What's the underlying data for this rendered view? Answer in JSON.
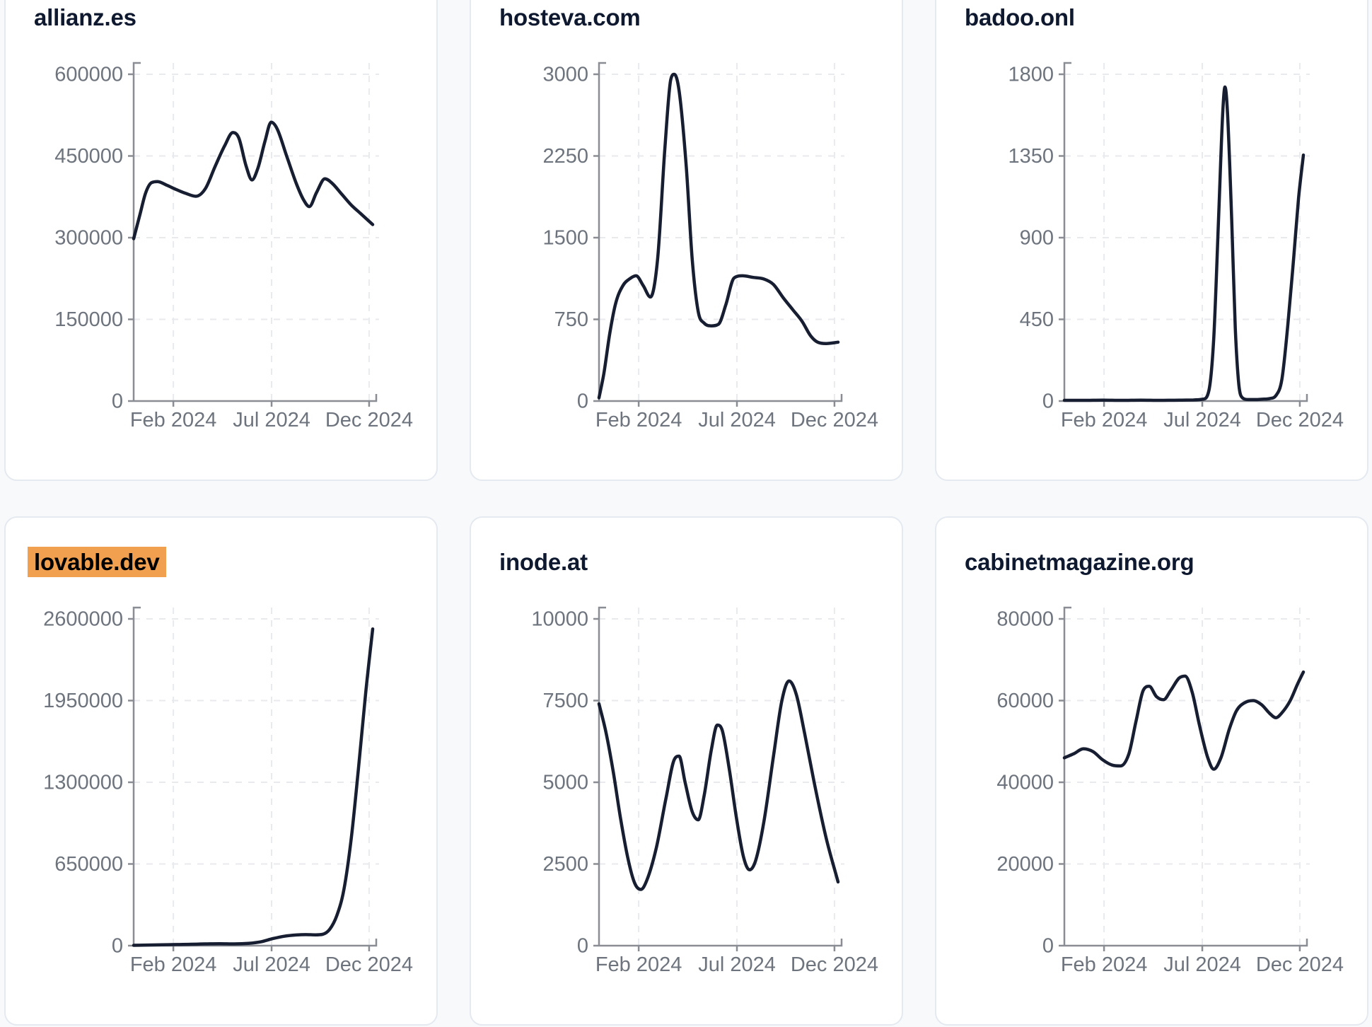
{
  "style": {
    "page_bg": "#f7f9fb",
    "card_bg": "#ffffff",
    "card_border": "#e5e9f0",
    "line_color": "#171e31",
    "title_color": "#0e1930",
    "tick_color": "#6e747d",
    "axis_color": "#8a8d93",
    "grid_color": "#e9eaee",
    "highlight_bg": "#f0a04e",
    "highlight_text": "#000000"
  },
  "chart_data": [
    {
      "type": "line",
      "title": "allianz.es",
      "highlighted": false,
      "xlabel": "",
      "ylabel": "",
      "x_ticks": [
        {
          "label": "Feb 2024",
          "pos": 0.166
        },
        {
          "label": "Jul 2024",
          "pos": 0.577
        },
        {
          "label": "Dec 2024",
          "pos": 0.985
        }
      ],
      "y_ticks": [
        0,
        150000,
        300000,
        450000,
        600000
      ],
      "y_max": 600000,
      "points": [
        [
          0.0,
          298000
        ],
        [
          0.025,
          340000
        ],
        [
          0.05,
          382000
        ],
        [
          0.075,
          401000
        ],
        [
          0.1,
          403000
        ],
        [
          0.14,
          396000
        ],
        [
          0.18,
          388000
        ],
        [
          0.22,
          381000
        ],
        [
          0.26,
          376000
        ],
        [
          0.3,
          390000
        ],
        [
          0.34,
          430000
        ],
        [
          0.38,
          468000
        ],
        [
          0.415,
          493000
        ],
        [
          0.44,
          483000
        ],
        [
          0.47,
          432000
        ],
        [
          0.495,
          406000
        ],
        [
          0.52,
          428000
        ],
        [
          0.55,
          478000
        ],
        [
          0.575,
          512000
        ],
        [
          0.6,
          500000
        ],
        [
          0.64,
          450000
        ],
        [
          0.68,
          400000
        ],
        [
          0.71,
          370000
        ],
        [
          0.735,
          357000
        ],
        [
          0.765,
          383000
        ],
        [
          0.8,
          408000
        ],
        [
          0.83,
          400000
        ],
        [
          0.87,
          380000
        ],
        [
          0.91,
          360000
        ],
        [
          0.95,
          344000
        ],
        [
          1.0,
          324000
        ]
      ]
    },
    {
      "type": "line",
      "title": "hosteva.com",
      "highlighted": false,
      "xlabel": "",
      "ylabel": "",
      "x_ticks": [
        {
          "label": "Feb 2024",
          "pos": 0.166
        },
        {
          "label": "Jul 2024",
          "pos": 0.577
        },
        {
          "label": "Dec 2024",
          "pos": 0.985
        }
      ],
      "y_ticks": [
        0,
        750,
        1500,
        2250,
        3000
      ],
      "y_max": 3000,
      "points": [
        [
          0.0,
          30
        ],
        [
          0.02,
          250
        ],
        [
          0.045,
          620
        ],
        [
          0.07,
          900
        ],
        [
          0.1,
          1060
        ],
        [
          0.13,
          1125
        ],
        [
          0.155,
          1150
        ],
        [
          0.185,
          1060
        ],
        [
          0.215,
          955
        ],
        [
          0.245,
          1300
        ],
        [
          0.275,
          2300
        ],
        [
          0.3,
          2950
        ],
        [
          0.315,
          3000
        ],
        [
          0.335,
          2850
        ],
        [
          0.365,
          2150
        ],
        [
          0.39,
          1300
        ],
        [
          0.415,
          820
        ],
        [
          0.44,
          715
        ],
        [
          0.47,
          690
        ],
        [
          0.5,
          705
        ],
        [
          0.53,
          880
        ],
        [
          0.565,
          1130
        ],
        [
          0.6,
          1150
        ],
        [
          0.645,
          1135
        ],
        [
          0.69,
          1120
        ],
        [
          0.73,
          1070
        ],
        [
          0.77,
          950
        ],
        [
          0.81,
          840
        ],
        [
          0.85,
          730
        ],
        [
          0.885,
          600
        ],
        [
          0.915,
          540
        ],
        [
          0.95,
          528
        ],
        [
          1.0,
          540
        ]
      ]
    },
    {
      "type": "line",
      "title": "badoo.onl",
      "highlighted": false,
      "xlabel": "",
      "ylabel": "",
      "x_ticks": [
        {
          "label": "Feb 2024",
          "pos": 0.166
        },
        {
          "label": "Jul 2024",
          "pos": 0.577
        },
        {
          "label": "Dec 2024",
          "pos": 0.985
        }
      ],
      "y_ticks": [
        0,
        450,
        900,
        1350,
        1800
      ],
      "y_max": 1800,
      "points": [
        [
          0.0,
          4
        ],
        [
          0.08,
          4
        ],
        [
          0.16,
          5
        ],
        [
          0.24,
          4
        ],
        [
          0.32,
          5
        ],
        [
          0.4,
          4
        ],
        [
          0.48,
          5
        ],
        [
          0.54,
          6
        ],
        [
          0.58,
          10
        ],
        [
          0.605,
          60
        ],
        [
          0.625,
          350
        ],
        [
          0.645,
          1000
        ],
        [
          0.663,
          1600
        ],
        [
          0.672,
          1730
        ],
        [
          0.682,
          1600
        ],
        [
          0.7,
          1000
        ],
        [
          0.715,
          400
        ],
        [
          0.73,
          90
        ],
        [
          0.745,
          18
        ],
        [
          0.77,
          8
        ],
        [
          0.8,
          8
        ],
        [
          0.83,
          10
        ],
        [
          0.86,
          14
        ],
        [
          0.885,
          30
        ],
        [
          0.91,
          120
        ],
        [
          0.935,
          420
        ],
        [
          0.96,
          800
        ],
        [
          0.98,
          1120
        ],
        [
          1.0,
          1355
        ]
      ]
    },
    {
      "type": "line",
      "title": "lovable.dev",
      "highlighted": true,
      "xlabel": "",
      "ylabel": "",
      "x_ticks": [
        {
          "label": "Feb 2024",
          "pos": 0.166
        },
        {
          "label": "Jul 2024",
          "pos": 0.577
        },
        {
          "label": "Dec 2024",
          "pos": 0.985
        }
      ],
      "y_ticks": [
        0,
        650000,
        1300000,
        1950000,
        2600000
      ],
      "y_max": 2600000,
      "points": [
        [
          0.0,
          3000
        ],
        [
          0.06,
          5000
        ],
        [
          0.12,
          7000
        ],
        [
          0.18,
          9000
        ],
        [
          0.24,
          11000
        ],
        [
          0.3,
          14000
        ],
        [
          0.36,
          16000
        ],
        [
          0.42,
          14000
        ],
        [
          0.48,
          18000
        ],
        [
          0.53,
          30000
        ],
        [
          0.58,
          55000
        ],
        [
          0.63,
          75000
        ],
        [
          0.68,
          85000
        ],
        [
          0.72,
          88000
        ],
        [
          0.76,
          86000
        ],
        [
          0.79,
          90000
        ],
        [
          0.82,
          130000
        ],
        [
          0.85,
          240000
        ],
        [
          0.88,
          450000
        ],
        [
          0.91,
          850000
        ],
        [
          0.94,
          1400000
        ],
        [
          0.97,
          2000000
        ],
        [
          1.0,
          2520000
        ]
      ]
    },
    {
      "type": "line",
      "title": "inode.at",
      "highlighted": false,
      "xlabel": "",
      "ylabel": "",
      "x_ticks": [
        {
          "label": "Feb 2024",
          "pos": 0.166
        },
        {
          "label": "Jul 2024",
          "pos": 0.577
        },
        {
          "label": "Dec 2024",
          "pos": 0.985
        }
      ],
      "y_ticks": [
        0,
        2500,
        5000,
        7500,
        10000
      ],
      "y_max": 10000,
      "points": [
        [
          0.0,
          7400
        ],
        [
          0.03,
          6500
        ],
        [
          0.06,
          5300
        ],
        [
          0.09,
          3900
        ],
        [
          0.12,
          2700
        ],
        [
          0.15,
          1900
        ],
        [
          0.175,
          1720
        ],
        [
          0.2,
          2000
        ],
        [
          0.24,
          3000
        ],
        [
          0.28,
          4500
        ],
        [
          0.315,
          5700
        ],
        [
          0.335,
          5800
        ],
        [
          0.36,
          5000
        ],
        [
          0.39,
          4100
        ],
        [
          0.415,
          3850
        ],
        [
          0.44,
          4600
        ],
        [
          0.47,
          6000
        ],
        [
          0.495,
          6750
        ],
        [
          0.515,
          6600
        ],
        [
          0.545,
          5400
        ],
        [
          0.575,
          3900
        ],
        [
          0.605,
          2700
        ],
        [
          0.63,
          2320
        ],
        [
          0.655,
          2600
        ],
        [
          0.69,
          3800
        ],
        [
          0.73,
          5800
        ],
        [
          0.765,
          7500
        ],
        [
          0.795,
          8100
        ],
        [
          0.825,
          7700
        ],
        [
          0.86,
          6500
        ],
        [
          0.9,
          5000
        ],
        [
          0.95,
          3300
        ],
        [
          1.0,
          1950
        ]
      ]
    },
    {
      "type": "line",
      "title": "cabinetmagazine.org",
      "highlighted": false,
      "xlabel": "",
      "ylabel": "",
      "x_ticks": [
        {
          "label": "Feb 2024",
          "pos": 0.166
        },
        {
          "label": "Jul 2024",
          "pos": 0.577
        },
        {
          "label": "Dec 2024",
          "pos": 0.985
        }
      ],
      "y_ticks": [
        0,
        20000,
        40000,
        60000,
        80000
      ],
      "y_max": 80000,
      "points": [
        [
          0.0,
          46000
        ],
        [
          0.04,
          47000
        ],
        [
          0.08,
          48200
        ],
        [
          0.12,
          47500
        ],
        [
          0.16,
          45500
        ],
        [
          0.2,
          44200
        ],
        [
          0.235,
          44000
        ],
        [
          0.27,
          47000
        ],
        [
          0.3,
          55000
        ],
        [
          0.33,
          62500
        ],
        [
          0.355,
          63500
        ],
        [
          0.385,
          61000
        ],
        [
          0.415,
          60200
        ],
        [
          0.445,
          62500
        ],
        [
          0.48,
          65500
        ],
        [
          0.505,
          66000
        ],
        [
          0.535,
          62000
        ],
        [
          0.565,
          54000
        ],
        [
          0.6,
          46000
        ],
        [
          0.625,
          43200
        ],
        [
          0.655,
          46000
        ],
        [
          0.69,
          53000
        ],
        [
          0.72,
          57500
        ],
        [
          0.755,
          59500
        ],
        [
          0.79,
          60000
        ],
        [
          0.825,
          59000
        ],
        [
          0.86,
          56800
        ],
        [
          0.885,
          55800
        ],
        [
          0.91,
          57000
        ],
        [
          0.945,
          60000
        ],
        [
          0.975,
          64000
        ],
        [
          1.0,
          67000
        ]
      ]
    }
  ]
}
